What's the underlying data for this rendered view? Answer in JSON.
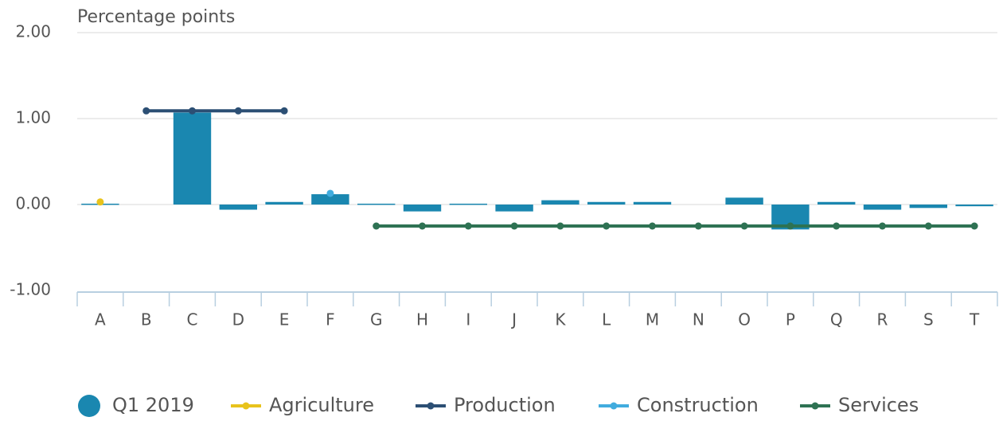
{
  "chart_data": {
    "type": "combo",
    "y_axis_label": "Percentage points",
    "categories": [
      "A",
      "B",
      "C",
      "D",
      "E",
      "F",
      "G",
      "H",
      "I",
      "J",
      "K",
      "L",
      "M",
      "N",
      "O",
      "P",
      "Q",
      "R",
      "S",
      "T"
    ],
    "ylim": [
      -1,
      2
    ],
    "yticks": [
      {
        "value": -1,
        "label": "-1.00"
      },
      {
        "value": 0,
        "label": "0.00"
      },
      {
        "value": 1,
        "label": "1.00"
      },
      {
        "value": 2,
        "label": "2.00"
      }
    ],
    "grid": true,
    "legend": "bottom",
    "series": [
      {
        "name": "Q1 2019",
        "type": "bar",
        "color": "#1a87b0",
        "values": [
          0.01,
          null,
          1.07,
          -0.06,
          0.03,
          0.12,
          0.01,
          -0.08,
          0.01,
          -0.08,
          0.05,
          0.03,
          0.03,
          null,
          0.08,
          -0.29,
          0.03,
          -0.06,
          -0.04,
          -0.02
        ]
      },
      {
        "name": "Agriculture",
        "type": "line",
        "color": "#e8c31c",
        "values": [
          0.03,
          null,
          null,
          null,
          null,
          null,
          null,
          null,
          null,
          null,
          null,
          null,
          null,
          null,
          null,
          null,
          null,
          null,
          null,
          null
        ]
      },
      {
        "name": "Production",
        "type": "line",
        "color": "#2c4f74",
        "values": [
          null,
          1.09,
          1.09,
          1.09,
          1.09,
          null,
          null,
          null,
          null,
          null,
          null,
          null,
          null,
          null,
          null,
          null,
          null,
          null,
          null,
          null
        ]
      },
      {
        "name": "Construction",
        "type": "line",
        "color": "#41acde",
        "values": [
          null,
          null,
          null,
          null,
          null,
          0.13,
          null,
          null,
          null,
          null,
          null,
          null,
          null,
          null,
          null,
          null,
          null,
          null,
          null,
          null
        ]
      },
      {
        "name": "Services",
        "type": "line",
        "color": "#2e7253",
        "values": [
          null,
          null,
          null,
          null,
          null,
          null,
          -0.25,
          -0.25,
          -0.25,
          -0.25,
          -0.25,
          -0.25,
          -0.25,
          -0.25,
          -0.25,
          -0.25,
          -0.25,
          -0.25,
          -0.25,
          -0.25
        ]
      }
    ]
  }
}
